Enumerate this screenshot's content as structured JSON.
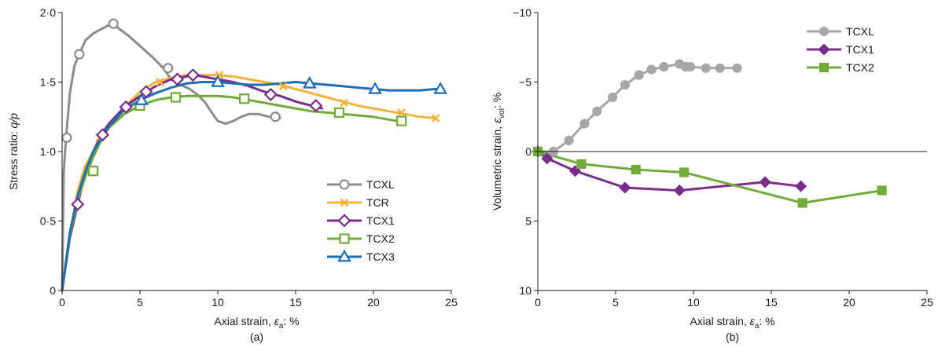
{
  "chart_data": [
    {
      "type": "line",
      "panel_label": "(a)",
      "xlabel_prefix": "Axial strain, ",
      "xlabel_var": "ε",
      "xlabel_sub": "a",
      "xlabel_suffix": ": %",
      "ylabel_prefix": "Stress ratio: ",
      "ylabel_var": "q/p",
      "xlim": [
        0,
        25
      ],
      "ylim": [
        0,
        2
      ],
      "xticks": [
        0,
        5,
        10,
        15,
        20,
        25
      ],
      "xtick_labels": [
        "0",
        "5",
        "10",
        "15",
        "20",
        "25"
      ],
      "yticks": [
        0,
        0.5,
        1,
        1.5,
        2
      ],
      "ytick_labels": [
        "0",
        "0·5",
        "1·0",
        "1·5",
        "2·0"
      ],
      "grid": false,
      "legend_position": "right, below center",
      "series": [
        {
          "name": "TCXL",
          "color": "#8c8c8c",
          "marker": "circle-open",
          "x": [
            0,
            0.1,
            0.25,
            0.5,
            0.8,
            1.1,
            1.5,
            2.0,
            2.5,
            3.0,
            3.3,
            3.7,
            4.3,
            5.0,
            5.8,
            6.5,
            7.0,
            7.6,
            8.2,
            8.8,
            9.2,
            9.5,
            9.8,
            10.0,
            10.5,
            11.0,
            11.5,
            12.0,
            12.6,
            13.3,
            14.0
          ],
          "y": [
            0,
            0.85,
            1.1,
            1.42,
            1.62,
            1.7,
            1.8,
            1.85,
            1.88,
            1.91,
            1.92,
            1.88,
            1.83,
            1.76,
            1.68,
            1.6,
            1.52,
            1.48,
            1.45,
            1.4,
            1.35,
            1.3,
            1.25,
            1.22,
            1.2,
            1.22,
            1.25,
            1.27,
            1.27,
            1.25,
            1.24
          ],
          "markers_x": [
            0.3,
            1.1,
            3.3,
            6.8,
            13.7
          ],
          "markers_y": [
            1.1,
            1.7,
            1.92,
            1.6,
            1.25
          ]
        },
        {
          "name": "TCR",
          "color": "#f2b33d",
          "marker": "x",
          "x": [
            0,
            0.5,
            1.0,
            1.5,
            2.0,
            2.5,
            3.0,
            4.0,
            5.0,
            6.0,
            7.0,
            8.0,
            9.0,
            10.0,
            11.0,
            12.0,
            13.0,
            14.0,
            15.0,
            16.0,
            17.0,
            18.0,
            19.0,
            20.0,
            21.0,
            22.0,
            23.0,
            24.0
          ],
          "y": [
            0,
            0.4,
            0.72,
            0.9,
            1.0,
            1.1,
            1.18,
            1.32,
            1.43,
            1.5,
            1.53,
            1.55,
            1.55,
            1.55,
            1.54,
            1.52,
            1.5,
            1.48,
            1.45,
            1.42,
            1.39,
            1.36,
            1.33,
            1.31,
            1.29,
            1.27,
            1.25,
            1.24
          ],
          "markers_x": [
            2.4,
            6.3,
            10.1,
            14.2,
            18.1,
            21.8,
            24.0
          ],
          "markers_y": [
            1.1,
            1.5,
            1.55,
            1.47,
            1.35,
            1.28,
            1.24
          ]
        },
        {
          "name": "TCX1",
          "color": "#7a2d8c",
          "marker": "diamond-open",
          "x": [
            0,
            0.5,
            1.0,
            1.5,
            2.0,
            2.5,
            3.0,
            3.5,
            4.0,
            5.0,
            6.0,
            7.0,
            8.0,
            8.5,
            9.0,
            10.0,
            11.0,
            12.0,
            13.0,
            14.0,
            15.0,
            16.0,
            16.7
          ],
          "y": [
            0,
            0.38,
            0.62,
            0.85,
            1.0,
            1.12,
            1.2,
            1.26,
            1.32,
            1.4,
            1.47,
            1.52,
            1.54,
            1.55,
            1.54,
            1.52,
            1.5,
            1.47,
            1.43,
            1.4,
            1.36,
            1.33,
            1.31
          ],
          "markers_x": [
            1.0,
            2.6,
            4.1,
            5.4,
            7.4,
            8.4,
            13.4,
            16.3
          ],
          "markers_y": [
            0.62,
            1.12,
            1.32,
            1.43,
            1.52,
            1.55,
            1.41,
            1.33
          ]
        },
        {
          "name": "TCX2",
          "color": "#72ab3a",
          "marker": "square-open",
          "x": [
            0,
            0.5,
            1.0,
            1.5,
            2.0,
            2.5,
            3.0,
            4.0,
            5.0,
            6.0,
            7.0,
            8.0,
            9.0,
            10.0,
            11.0,
            12.0,
            13.0,
            14.0,
            15.0,
            16.0,
            17.0,
            18.0,
            19.0,
            20.0,
            21.0,
            22.0
          ],
          "y": [
            0,
            0.4,
            0.65,
            0.82,
            0.96,
            1.08,
            1.17,
            1.27,
            1.33,
            1.37,
            1.39,
            1.4,
            1.4,
            1.4,
            1.39,
            1.37,
            1.35,
            1.33,
            1.31,
            1.29,
            1.28,
            1.27,
            1.26,
            1.25,
            1.23,
            1.21
          ],
          "markers_x": [
            2.0,
            5.0,
            7.3,
            11.7,
            17.8,
            21.8
          ],
          "markers_y": [
            0.86,
            1.33,
            1.39,
            1.38,
            1.28,
            1.22
          ]
        },
        {
          "name": "TCX3",
          "color": "#1f6db3",
          "marker": "triangle-open",
          "x": [
            0,
            0.5,
            1.0,
            1.5,
            2.0,
            3.0,
            4.0,
            5.0,
            6.0,
            7.0,
            8.0,
            9.0,
            10.0,
            11.0,
            12.0,
            13.0,
            14.0,
            15.0,
            16.0,
            17.0,
            18.0,
            19.0,
            20.0,
            21.0,
            22.0,
            23.0,
            24.0,
            24.5
          ],
          "y": [
            0,
            0.42,
            0.68,
            0.86,
            1.0,
            1.18,
            1.3,
            1.37,
            1.42,
            1.46,
            1.49,
            1.5,
            1.5,
            1.49,
            1.48,
            1.48,
            1.49,
            1.5,
            1.49,
            1.48,
            1.47,
            1.46,
            1.45,
            1.44,
            1.44,
            1.44,
            1.45,
            1.45
          ],
          "markers_x": [
            5.1,
            10.0,
            15.9,
            20.1,
            24.3
          ],
          "markers_y": [
            1.37,
            1.5,
            1.49,
            1.45,
            1.45
          ]
        }
      ]
    },
    {
      "type": "line",
      "panel_label": "(b)",
      "xlabel_prefix": "Axial strain, ",
      "xlabel_var": "ε",
      "xlabel_sub": "a",
      "xlabel_suffix": ": %",
      "ylabel_prefix": "Volumetric strain, ",
      "ylabel_var": "ε",
      "ylabel_sub": "vol",
      "ylabel_suffix": ": %",
      "xlim": [
        0,
        25
      ],
      "ylim": [
        10,
        -10
      ],
      "y_axis_inverted": true,
      "xticks": [
        0,
        5,
        10,
        15,
        20,
        25
      ],
      "xtick_labels": [
        "0",
        "5",
        "10",
        "15",
        "20",
        "25"
      ],
      "yticks": [
        -10,
        -5,
        0,
        5,
        10
      ],
      "ytick_labels": [
        "−10",
        "−5",
        "0",
        "5",
        "10"
      ],
      "zero_line": true,
      "grid": false,
      "legend_position": "top-right",
      "series": [
        {
          "name": "TCXL",
          "color": "#a6a6a6",
          "marker": "circle-filled",
          "x": [
            0,
            1.0,
            2.0,
            3.0,
            3.8,
            4.8,
            5.6,
            6.5,
            7.3,
            8.1,
            9.1,
            9.5,
            9.8,
            10.8,
            11.7,
            12.8
          ],
          "y": [
            0,
            0,
            -0.8,
            -2.0,
            -2.9,
            -3.9,
            -4.8,
            -5.5,
            -5.9,
            -6.1,
            -6.3,
            -6.1,
            -6.1,
            -6.0,
            -6.0,
            -6.0
          ]
        },
        {
          "name": "TCX1",
          "color": "#7a2d8c",
          "marker": "diamond-filled",
          "x": [
            0,
            0.6,
            2.4,
            5.6,
            9.1,
            14.6,
            16.9
          ],
          "y": [
            0,
            0.5,
            1.4,
            2.6,
            2.8,
            2.2,
            2.5
          ]
        },
        {
          "name": "TCX2",
          "color": "#72ab3a",
          "marker": "square-filled",
          "x": [
            0,
            2.8,
            6.3,
            9.4,
            17.0,
            22.1
          ],
          "y": [
            0,
            0.9,
            1.3,
            1.5,
            3.7,
            2.8
          ]
        }
      ]
    }
  ]
}
